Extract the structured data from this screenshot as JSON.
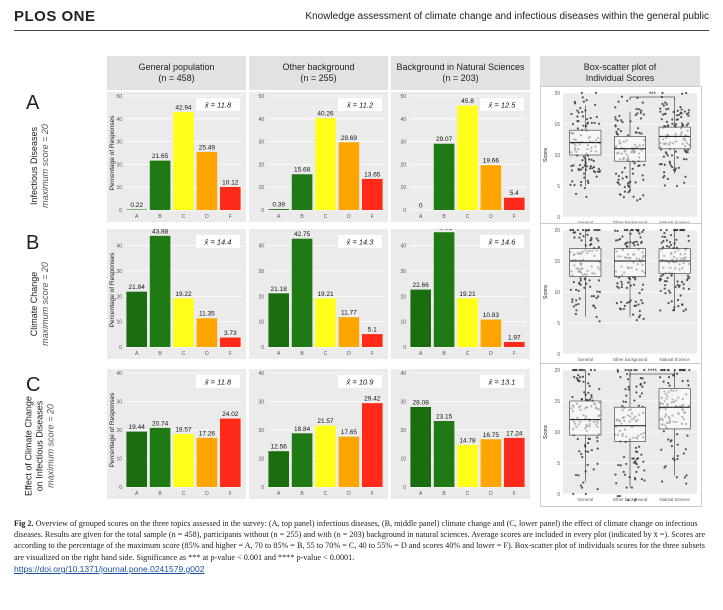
{
  "header": {
    "journal": "PLOS ONE",
    "running_title": "Knowledge assessment of climate change and infectious diseases within the general public"
  },
  "columns": [
    {
      "title": "General population",
      "n": "(n = 458)"
    },
    {
      "title": "Other background",
      "n": "(n = 255)"
    },
    {
      "title": "Background in Natural Sciences",
      "n": "(n = 203)"
    },
    {
      "title": "Box-scatter plot of",
      "n": "Individual Scores"
    }
  ],
  "rows": [
    {
      "letter": "A",
      "label": "Infectious Diseases",
      "sublabel": "maximum score = 20"
    },
    {
      "letter": "B",
      "label": "Climate Change",
      "sublabel": "maximum score = 20"
    },
    {
      "letter": "C",
      "label": "Effect of Climate Change on Infectious Diseases",
      "label_line1": "Effect of Climate Change",
      "label_line2": "on Infectious Diseases",
      "sublabel": "maximum score = 20"
    }
  ],
  "colors": {
    "A": "#1a6e10",
    "B": "#1f7a14",
    "C": "#ffff1a",
    "D": "#ffa500",
    "F": "#ff2a1a",
    "panel_bg": "#ebebeb"
  },
  "chart_data": [
    {
      "type": "bar",
      "row": "A",
      "group": "General population",
      "ylabel": "Percentage of Responses",
      "categories": [
        "A",
        "B",
        "C",
        "D",
        "F"
      ],
      "values": [
        0.22,
        21.65,
        42.94,
        25.49,
        10.12
      ],
      "mean_label": "x̄ = 11.8",
      "ylim": [
        0,
        50
      ],
      "yticks": [
        0,
        10,
        20,
        30,
        40,
        50
      ]
    },
    {
      "type": "bar",
      "row": "A",
      "group": "Other background",
      "categories": [
        "A",
        "B",
        "C",
        "D",
        "F"
      ],
      "values": [
        0.39,
        15.68,
        40.26,
        29.69,
        13.65
      ],
      "mean_label": "x̄ = 11.2",
      "ylim": [
        0,
        50
      ],
      "yticks": [
        0,
        10,
        20,
        30,
        40,
        50
      ]
    },
    {
      "type": "bar",
      "row": "A",
      "group": "Background in Natural Sciences",
      "categories": [
        "A",
        "B",
        "C",
        "D",
        "F"
      ],
      "values": [
        0,
        29.07,
        45.8,
        19.66,
        5.4
      ],
      "mean_label": "x̄ = 12.5",
      "ylim": [
        0,
        50
      ],
      "yticks": [
        0,
        10,
        20,
        30,
        40,
        50
      ]
    },
    {
      "type": "bar",
      "row": "B",
      "group": "General population",
      "ylabel": "Percentage of Responses",
      "categories": [
        "A",
        "B",
        "C",
        "D",
        "F"
      ],
      "values": [
        21.84,
        43.88,
        19.22,
        11.35,
        3.73
      ],
      "mean_label": "x̄ = 14.4",
      "ylim": [
        0,
        45
      ],
      "yticks": [
        0,
        10,
        20,
        30,
        40
      ]
    },
    {
      "type": "bar",
      "row": "B",
      "group": "Other background",
      "categories": [
        "A",
        "B",
        "C",
        "D",
        "F"
      ],
      "values": [
        21.18,
        42.75,
        19.21,
        11.77,
        5.1
      ],
      "mean_label": "x̄ = 14.3",
      "ylim": [
        0,
        45
      ],
      "yticks": [
        0,
        10,
        20,
        30,
        40
      ]
    },
    {
      "type": "bar",
      "row": "B",
      "group": "Background in Natural Sciences",
      "categories": [
        "A",
        "B",
        "C",
        "D",
        "F"
      ],
      "values": [
        22.66,
        45.31,
        19.21,
        10.83,
        1.97
      ],
      "mean_label": "x̄ = 14.6",
      "ylim": [
        0,
        45
      ],
      "yticks": [
        0,
        10,
        20,
        30,
        40
      ]
    },
    {
      "type": "bar",
      "row": "C",
      "group": "General population",
      "ylabel": "Percentage of Responses",
      "categories": [
        "A",
        "B",
        "C",
        "D",
        "F"
      ],
      "values": [
        19.44,
        20.74,
        18.57,
        17.26,
        24.02
      ],
      "mean_label": "x̄ = 11.8",
      "ylim": [
        0,
        40
      ],
      "yticks": [
        0,
        10,
        20,
        30,
        40
      ]
    },
    {
      "type": "bar",
      "row": "C",
      "group": "Other background",
      "categories": [
        "A",
        "B",
        "C",
        "D",
        "F"
      ],
      "values": [
        12.56,
        18.84,
        21.57,
        17.65,
        29.42
      ],
      "mean_label": "x̄ = 10.9",
      "ylim": [
        0,
        40
      ],
      "yticks": [
        0,
        10,
        20,
        30,
        40
      ]
    },
    {
      "type": "bar",
      "row": "C",
      "group": "Background in Natural Sciences",
      "categories": [
        "A",
        "B",
        "C",
        "D",
        "F"
      ],
      "values": [
        28.08,
        23.15,
        14.78,
        16.75,
        17.24
      ],
      "mean_label": "x̄ = 13.1",
      "ylim": [
        0,
        40
      ],
      "yticks": [
        0,
        10,
        20,
        30,
        40
      ]
    }
  ],
  "box_data": [
    {
      "type": "box",
      "row": "A",
      "ylabel": "Score",
      "categories": [
        "General",
        "Other background",
        "Natural Science"
      ],
      "ylim": [
        0,
        20
      ],
      "yticks": [
        0,
        5,
        10,
        15,
        20
      ],
      "significance": "***",
      "boxes": [
        {
          "q1": 10,
          "median": 12,
          "q3": 14,
          "lo": 5,
          "hi": 18
        },
        {
          "q1": 9,
          "median": 11,
          "q3": 13,
          "lo": 4,
          "hi": 17
        },
        {
          "q1": 11,
          "median": 13,
          "q3": 14.5,
          "lo": 7,
          "hi": 19
        }
      ]
    },
    {
      "type": "box",
      "row": "B",
      "ylabel": "Score",
      "categories": [
        "General",
        "Other background",
        "Natural Science"
      ],
      "ylim": [
        0,
        20
      ],
      "yticks": [
        0,
        5,
        10,
        15,
        20
      ],
      "significance": "",
      "boxes": [
        {
          "q1": 12.5,
          "median": 15,
          "q3": 17,
          "lo": 6,
          "hi": 20
        },
        {
          "q1": 12.5,
          "median": 15,
          "q3": 17,
          "lo": 6,
          "hi": 20
        },
        {
          "q1": 13,
          "median": 15,
          "q3": 17,
          "lo": 7,
          "hi": 20
        }
      ]
    },
    {
      "type": "box",
      "row": "C",
      "ylabel": "Score",
      "categories": [
        "General",
        "Other background",
        "Natural Science"
      ],
      "ylim": [
        0,
        20
      ],
      "yticks": [
        0,
        5,
        10,
        15,
        20
      ],
      "significance": "****",
      "boxes": [
        {
          "q1": 9.5,
          "median": 12,
          "q3": 15,
          "lo": 2,
          "hi": 20
        },
        {
          "q1": 8.5,
          "median": 11,
          "q3": 14,
          "lo": 1,
          "hi": 20
        },
        {
          "q1": 10.5,
          "median": 14,
          "q3": 17,
          "lo": 3,
          "hi": 20
        }
      ]
    }
  ],
  "caption": {
    "label": "Fig 2.",
    "text": "Overview of grouped scores on the three topics assessed in the survey: (A, top panel) infectious diseases, (B, middle panel) climate change and (C, lower panel) the effect of climate change on infectious diseases. Results are given for the total sample (n = 458), participants without (n = 255) and with (n = 203) background in natural sciences. Average scores are included in every plot (indicated by x̄ =). Scores are according to the percentage of the maximum score (85% and higher = A, 70 to 85% = B, 55 to 70% = C, 40 to 55% = D and scores 40% and lower = F). Box-scatter plot of individuals scores for the three subsets are visualized on the right hand side. Significance as *** at p-value < 0.001 and **** p-value < 0.0001."
  },
  "doi": "https://doi.org/10.1371/journal.pone.0241579.g002"
}
